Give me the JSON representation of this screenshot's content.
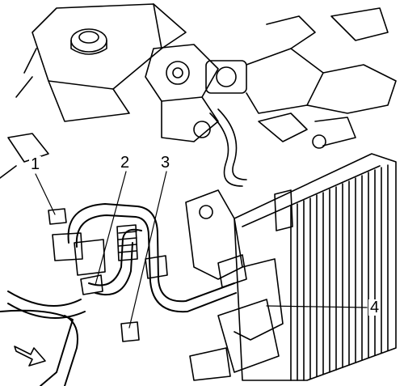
{
  "callouts": {
    "c1": "1",
    "c2": "2",
    "c3": "3",
    "c4": "4"
  },
  "colors": {
    "line": "#000000",
    "background": "#ffffff"
  },
  "icons": {
    "direction": "arrow-icon"
  }
}
